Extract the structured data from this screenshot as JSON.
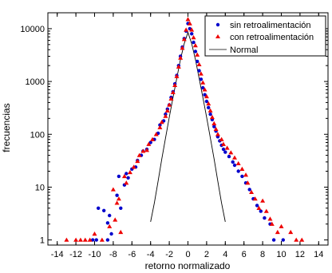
{
  "chart_data": {
    "type": "scatter",
    "xlabel": "retorno normalizado",
    "ylabel": "frecuencias",
    "xlim": [
      -15,
      15
    ],
    "ylim": [
      0.8,
      20000
    ],
    "yscale": "log",
    "x_ticks": [
      -14,
      -12,
      -10,
      -8,
      -6,
      -4,
      -2,
      0,
      2,
      4,
      6,
      8,
      10,
      12,
      14
    ],
    "x_tick_labels": [
      "-14",
      "-12",
      "-10",
      "-8",
      "-6",
      "-4",
      "-2",
      "0",
      "2",
      "4",
      "6",
      "8",
      "10",
      "12",
      "14"
    ],
    "y_ticks": [
      1,
      10,
      100,
      1000,
      10000
    ],
    "y_tick_labels": [
      "1",
      "10",
      "100",
      "1000",
      "10000"
    ],
    "grid": false,
    "legend_position": "top-right",
    "legend": [
      "sin retroalimentación",
      "con retroalimentación",
      "Normal"
    ],
    "series": [
      {
        "name": "sin retroalimentación",
        "marker": "circle",
        "color": "#0000cc",
        "points": [
          [
            -10.2,
            1
          ],
          [
            -9.8,
            1
          ],
          [
            -8.6,
            1
          ],
          [
            -8.2,
            1.3
          ],
          [
            -8.6,
            2.1
          ],
          [
            -8.4,
            2.9
          ],
          [
            -9.6,
            4
          ],
          [
            -9.0,
            3.6
          ],
          [
            -7.2,
            4
          ],
          [
            -7.6,
            7
          ],
          [
            -7.4,
            16
          ],
          [
            -6.8,
            11
          ],
          [
            -6.4,
            15
          ],
          [
            -6.6,
            18
          ],
          [
            -6.0,
            22
          ],
          [
            -5.6,
            24
          ],
          [
            -5.4,
            32
          ],
          [
            -5.0,
            40
          ],
          [
            -4.8,
            48
          ],
          [
            -4.4,
            52
          ],
          [
            -4.0,
            70
          ],
          [
            -3.6,
            80
          ],
          [
            -3.2,
            105
          ],
          [
            -3.0,
            150
          ],
          [
            -2.6,
            180
          ],
          [
            -2.4,
            240
          ],
          [
            -2.2,
            300
          ],
          [
            -2.0,
            360
          ],
          [
            -1.8,
            500
          ],
          [
            -1.6,
            640
          ],
          [
            -1.4,
            900
          ],
          [
            -1.2,
            1300
          ],
          [
            -1.0,
            2000
          ],
          [
            -0.8,
            3000
          ],
          [
            -0.6,
            4500
          ],
          [
            -0.4,
            6500
          ],
          [
            -0.2,
            9000
          ],
          [
            0.0,
            12500
          ],
          [
            0.2,
            10000
          ],
          [
            0.4,
            8000
          ],
          [
            0.6,
            5500
          ],
          [
            0.8,
            3700
          ],
          [
            1.0,
            2400
          ],
          [
            1.2,
            1600
          ],
          [
            1.4,
            1100
          ],
          [
            1.6,
            760
          ],
          [
            1.8,
            560
          ],
          [
            2.0,
            420
          ],
          [
            2.2,
            320
          ],
          [
            2.4,
            240
          ],
          [
            2.6,
            190
          ],
          [
            2.8,
            140
          ],
          [
            3.0,
            115
          ],
          [
            3.2,
            90
          ],
          [
            3.4,
            75
          ],
          [
            3.6,
            62
          ],
          [
            3.8,
            52
          ],
          [
            4.0,
            46
          ],
          [
            4.4,
            38
          ],
          [
            4.8,
            30
          ],
          [
            5.0,
            26
          ],
          [
            5.4,
            20
          ],
          [
            5.8,
            16
          ],
          [
            6.2,
            12
          ],
          [
            6.6,
            9
          ],
          [
            7.0,
            6
          ],
          [
            7.4,
            4.5
          ],
          [
            7.8,
            3.5
          ],
          [
            8.2,
            2.6
          ],
          [
            8.8,
            2
          ],
          [
            9.2,
            1
          ],
          [
            10.2,
            1
          ]
        ]
      },
      {
        "name": "con retroalimentación",
        "marker": "triangle",
        "color": "#ee0000",
        "points": [
          [
            -13.0,
            1
          ],
          [
            -12.0,
            1
          ],
          [
            -11.5,
            1
          ],
          [
            -11.0,
            1
          ],
          [
            -10.5,
            1
          ],
          [
            -10.0,
            1.3
          ],
          [
            -9.2,
            1
          ],
          [
            -8.4,
            1.8
          ],
          [
            -7.8,
            2.4
          ],
          [
            -7.2,
            1.4
          ],
          [
            -7.6,
            5
          ],
          [
            -8.0,
            9
          ],
          [
            -7.4,
            6
          ],
          [
            -6.8,
            16
          ],
          [
            -6.6,
            12
          ],
          [
            -6.2,
            19
          ],
          [
            -5.8,
            24
          ],
          [
            -5.4,
            31
          ],
          [
            -5.2,
            40
          ],
          [
            -4.8,
            48
          ],
          [
            -4.4,
            50
          ],
          [
            -4.2,
            65
          ],
          [
            -3.8,
            80
          ],
          [
            -3.4,
            100
          ],
          [
            -3.0,
            135
          ],
          [
            -2.8,
            170
          ],
          [
            -2.4,
            220
          ],
          [
            -2.2,
            280
          ],
          [
            -2.0,
            360
          ],
          [
            -1.8,
            470
          ],
          [
            -1.6,
            620
          ],
          [
            -1.4,
            850
          ],
          [
            -1.2,
            1250
          ],
          [
            -1.0,
            1900
          ],
          [
            -0.8,
            2800
          ],
          [
            -0.6,
            4300
          ],
          [
            -0.4,
            6300
          ],
          [
            -0.2,
            9500
          ],
          [
            0.0,
            15000
          ],
          [
            0.2,
            12500
          ],
          [
            0.4,
            9500
          ],
          [
            0.6,
            6800
          ],
          [
            0.8,
            4800
          ],
          [
            1.0,
            3200
          ],
          [
            1.2,
            2100
          ],
          [
            1.4,
            1400
          ],
          [
            1.6,
            950
          ],
          [
            1.8,
            700
          ],
          [
            2.0,
            520
          ],
          [
            2.2,
            380
          ],
          [
            2.4,
            280
          ],
          [
            2.6,
            210
          ],
          [
            2.8,
            160
          ],
          [
            3.0,
            125
          ],
          [
            3.2,
            100
          ],
          [
            3.6,
            80
          ],
          [
            3.8,
            65
          ],
          [
            4.2,
            55
          ],
          [
            4.6,
            45
          ],
          [
            5.0,
            36
          ],
          [
            5.4,
            28
          ],
          [
            5.8,
            22
          ],
          [
            6.2,
            17
          ],
          [
            6.4,
            12
          ],
          [
            6.8,
            8
          ],
          [
            7.2,
            6
          ],
          [
            7.6,
            4
          ],
          [
            8.0,
            5.5
          ],
          [
            8.4,
            3.5
          ],
          [
            8.8,
            2.5
          ],
          [
            9.0,
            2
          ],
          [
            9.6,
            1.4
          ],
          [
            10.0,
            1.8
          ],
          [
            11.0,
            1.4
          ],
          [
            11.6,
            1
          ],
          [
            12.2,
            1
          ]
        ]
      },
      {
        "name": "Normal",
        "type": "line",
        "color": "#000000",
        "points": [
          [
            -4.0,
            2.2
          ],
          [
            -3.6,
            5
          ],
          [
            -3.2,
            13
          ],
          [
            -2.8,
            34
          ],
          [
            -2.4,
            85
          ],
          [
            -2.0,
            210
          ],
          [
            -1.6,
            500
          ],
          [
            -1.2,
            1150
          ],
          [
            -0.8,
            2600
          ],
          [
            -0.4,
            5200
          ],
          [
            0.0,
            8500
          ],
          [
            0.4,
            5200
          ],
          [
            0.8,
            2600
          ],
          [
            1.2,
            1150
          ],
          [
            1.6,
            500
          ],
          [
            2.0,
            210
          ],
          [
            2.4,
            85
          ],
          [
            2.8,
            34
          ],
          [
            3.2,
            13
          ],
          [
            3.6,
            5
          ],
          [
            4.0,
            2.2
          ]
        ]
      }
    ]
  }
}
